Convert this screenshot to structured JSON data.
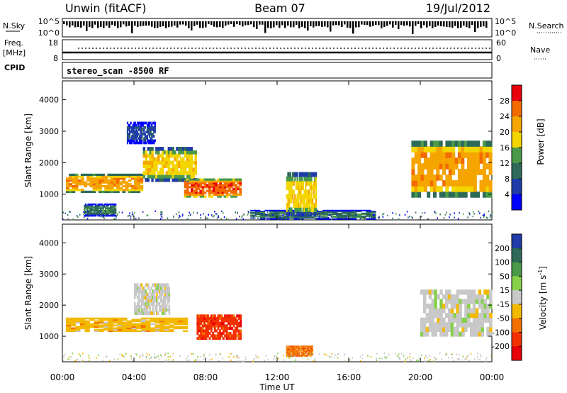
{
  "header": {
    "site": "Unwin (fitACF)",
    "beam": "Beam 07",
    "date": "19/Jul/2012"
  },
  "noise_panel": {
    "left_label": "N.Sky",
    "right_label": "N.Search",
    "left_ticks": [
      "10^5",
      "10^0"
    ],
    "right_ticks": [
      "10^5",
      "10^0"
    ]
  },
  "freq_panel": {
    "left_label_1": "Freq.",
    "left_label_2": "[MHz]",
    "left_ticks": [
      "18",
      "8"
    ],
    "right_label": "Nave",
    "right_ticks": [
      "60",
      "0"
    ],
    "cpid_label": "CPID"
  },
  "cpid": {
    "text": "stereo_scan  -8500  RF"
  },
  "chart_data": [
    {
      "type": "heatmap",
      "title": "",
      "xlabel": "Time UT",
      "ylabel": "Slant Range [km]",
      "x_ticks": [
        "00:00",
        "04:00",
        "08:00",
        "12:00",
        "16:00",
        "20:00",
        "00:00"
      ],
      "y_ticks": [
        1000,
        2000,
        3000,
        4000
      ],
      "ylim": [
        180,
        4600
      ],
      "colorbar": {
        "label": "Power [dB]",
        "ticks": [
          4,
          8,
          12,
          16,
          20,
          24,
          28
        ],
        "range": [
          0,
          32
        ],
        "colors": [
          "#0000ff",
          "#1f3ca8",
          "#2e6a57",
          "#4a9a49",
          "#f3d500",
          "#f5a400",
          "#f36a00",
          "#e8000b"
        ]
      },
      "regions": [
        {
          "t0": 0.2,
          "t1": 4.5,
          "r0": 1050,
          "r1": 1650,
          "level": 22
        },
        {
          "t0": 4.5,
          "t1": 7.5,
          "r0": 1400,
          "r1": 2500,
          "level": 18
        },
        {
          "t0": 6.8,
          "t1": 10,
          "r0": 900,
          "r1": 1500,
          "level": 24
        },
        {
          "t0": 3.6,
          "t1": 5.2,
          "r0": 2600,
          "r1": 3300,
          "level": 6
        },
        {
          "t0": 1.2,
          "t1": 3,
          "r0": 300,
          "r1": 700,
          "level": 10
        },
        {
          "t0": 10.5,
          "t1": 17.5,
          "r0": 200,
          "r1": 500,
          "level": 8
        },
        {
          "t0": 12.5,
          "t1": 14.2,
          "r0": 300,
          "r1": 1700,
          "level": 16
        },
        {
          "t0": 19.5,
          "t1": 24,
          "r0": 900,
          "r1": 2700,
          "level": 20
        }
      ]
    },
    {
      "type": "heatmap",
      "title": "",
      "xlabel": "Time UT",
      "ylabel": "Slant Range [km]",
      "x_ticks": [
        "00:00",
        "04:00",
        "08:00",
        "12:00",
        "16:00",
        "20:00",
        "00:00"
      ],
      "y_ticks": [
        1000,
        2000,
        3000,
        4000
      ],
      "ylim": [
        180,
        4600
      ],
      "colorbar": {
        "label": "Velocity [m s-1]",
        "ticks": [
          "200",
          "100",
          "50",
          "15",
          "-15",
          "-50",
          "-100",
          "-200"
        ],
        "colors": [
          "#1f3ca8",
          "#2e6a57",
          "#4a9a49",
          "#86d04a",
          "#c8c8c8",
          "#f3b800",
          "#f37000",
          "#f33000",
          "#e8000b"
        ]
      },
      "regions": [
        {
          "t0": 0.2,
          "t1": 7,
          "r0": 1150,
          "r1": 1600,
          "level": "-15"
        },
        {
          "t0": 4,
          "t1": 6,
          "r0": 1700,
          "r1": 2700,
          "level": "15"
        },
        {
          "t0": 7.5,
          "t1": 10,
          "r0": 900,
          "r1": 1700,
          "level": "-100"
        },
        {
          "t0": 12.5,
          "t1": 14,
          "r0": 350,
          "r1": 700,
          "level": "-50"
        },
        {
          "t0": 20,
          "t1": 24,
          "r0": 1000,
          "r1": 2500,
          "level": "15"
        }
      ]
    }
  ]
}
